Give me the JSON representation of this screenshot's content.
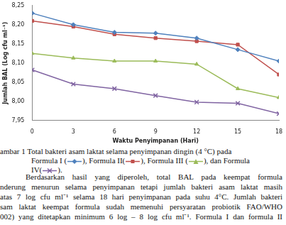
{
  "chart_data": {
    "type": "line",
    "x_label": "Waktu Penyimpanan (Hari)",
    "y_label": "Jumlah BAL (Log cfu ml⁻¹)",
    "x": [
      0,
      3,
      6,
      9,
      12,
      15,
      18
    ],
    "series": [
      {
        "name": "Formula I",
        "color": "#4f81bd",
        "marker": "diamond",
        "values": [
          8.23,
          8.2,
          8.18,
          8.178,
          8.165,
          8.135,
          8.105
        ]
      },
      {
        "name": "Formula II",
        "color": "#c0504d",
        "marker": "square",
        "values": [
          8.21,
          8.195,
          8.175,
          8.165,
          8.157,
          8.148,
          8.07
        ]
      },
      {
        "name": "Formula III",
        "color": "#9bbb59",
        "marker": "triangle",
        "values": [
          8.125,
          8.113,
          8.105,
          8.105,
          8.097,
          8.033,
          8.01
        ]
      },
      {
        "name": "Formula IV",
        "color": "#8064a2",
        "marker": "x",
        "values": [
          8.082,
          8.045,
          8.033,
          8.015,
          7.998,
          7.995,
          7.968
        ]
      }
    ],
    "xlim": [
      0,
      18
    ],
    "xticks": [
      0,
      3,
      6,
      9,
      12,
      15,
      18
    ],
    "ylim": [
      7.95,
      8.25
    ],
    "yticks": [
      {
        "value": 7.95,
        "label": "7,95"
      },
      {
        "value": 8.0,
        "label": "8,00"
      },
      {
        "value": 8.05,
        "label": "8,05"
      },
      {
        "value": 8.1,
        "label": "8,10"
      },
      {
        "value": 8.15,
        "label": "8,15"
      },
      {
        "value": 8.2,
        "label": "8,20"
      },
      {
        "value": 8.25,
        "label": "8,25"
      }
    ],
    "grid": false
  },
  "caption": {
    "line1": "ambar 1 Total bakteri asam laktat selama penyimpanan dingin (4 °C) pada",
    "line2_parts": [
      "Formula I (",
      "), Formula II(",
      "), Formula III (",
      "), dan Formula",
      "IV(",
      ")."
    ]
  },
  "paragraph": [
    "Berdasarkan hasil yang diperoleh, total BAL pada keempat formula",
    "nderung menurun selama penyimpanan tetapi jumlah bakteri asam laktat masih",
    "atas 7 log cfu ml⁻¹ selama 18 hari penyimpanan pada suhu 4°C. Jumlah bakteri",
    "sam laktat keempat formula sudah memenuhi persyaratan probiotik FAO/WHO",
    "002) yang ditetapkan minimum 6 log – 8 log cfu ml⁻¹. Formula I dan formula II"
  ]
}
